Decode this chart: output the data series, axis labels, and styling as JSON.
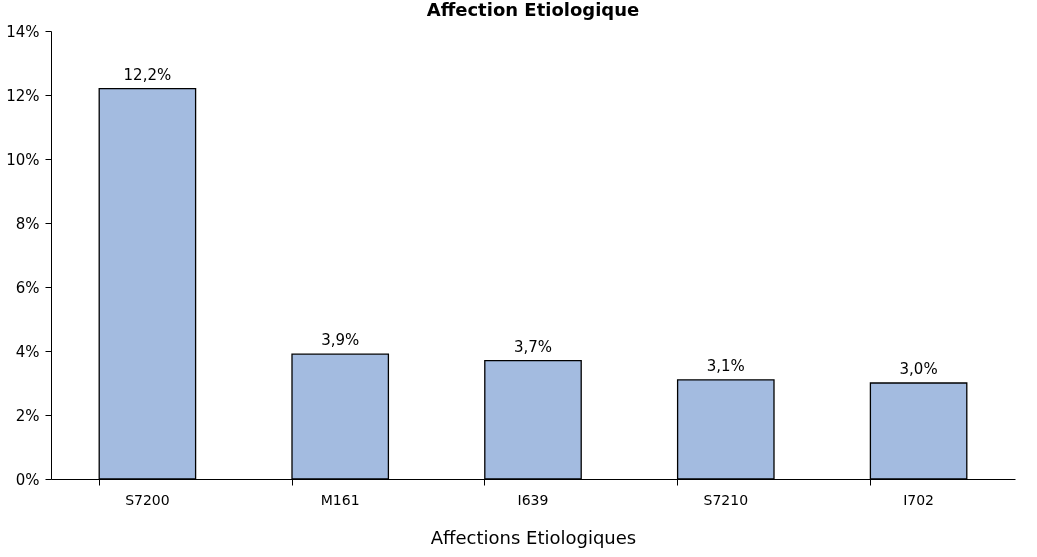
{
  "chart_data": {
    "type": "bar",
    "title": "Affection Etiologique",
    "xlabel": "Affections Etiologiques",
    "categories": [
      "S7200",
      "M161",
      "I639",
      "S7210",
      "I702"
    ],
    "values": [
      12.2,
      3.9,
      3.7,
      3.1,
      3.0
    ],
    "value_labels": [
      "12,2%",
      "3,9%",
      "3,7%",
      "3,1%",
      "3,0%"
    ],
    "color": "#a3bbe0",
    "ylim": [
      0,
      14
    ],
    "yticks": [
      {
        "value": 0,
        "label": "0%"
      },
      {
        "value": 2,
        "label": "2%"
      },
      {
        "value": 4,
        "label": "4%"
      },
      {
        "value": 6,
        "label": "6%"
      },
      {
        "value": 8,
        "label": "8%"
      },
      {
        "value": 10,
        "label": "10%"
      },
      {
        "value": 12,
        "label": "12%"
      },
      {
        "value": 14,
        "label": "14%"
      }
    ],
    "grid": false
  }
}
